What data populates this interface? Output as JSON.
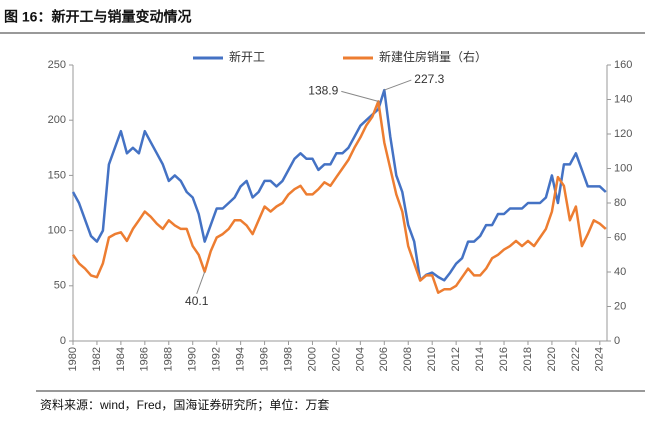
{
  "chart_data": {
    "type": "line",
    "title": "图 16：新开工与销量变动情况",
    "source": "资料来源：wind，Fred，国海证券研究所；单位：万套",
    "x": [
      1980.0,
      1980.5,
      1981.0,
      1981.5,
      1982.0,
      1982.5,
      1983.0,
      1983.5,
      1984.0,
      1984.5,
      1985.0,
      1985.5,
      1986.0,
      1986.5,
      1987.0,
      1987.5,
      1988.0,
      1988.5,
      1989.0,
      1989.5,
      1990.0,
      1990.5,
      1991.0,
      1991.5,
      1992.0,
      1992.5,
      1993.0,
      1993.5,
      1994.0,
      1994.5,
      1995.0,
      1995.5,
      1996.0,
      1996.5,
      1997.0,
      1997.5,
      1998.0,
      1998.5,
      1999.0,
      1999.5,
      2000.0,
      2000.5,
      2001.0,
      2001.5,
      2002.0,
      2002.5,
      2003.0,
      2003.5,
      2004.0,
      2004.5,
      2005.0,
      2005.5,
      2006.0,
      2006.5,
      2007.0,
      2007.5,
      2008.0,
      2008.5,
      2009.0,
      2009.5,
      2010.0,
      2010.5,
      2011.0,
      2011.5,
      2012.0,
      2012.5,
      2013.0,
      2013.5,
      2014.0,
      2014.5,
      2015.0,
      2015.5,
      2016.0,
      2016.5,
      2017.0,
      2017.5,
      2018.0,
      2018.5,
      2019.0,
      2019.5,
      2020.0,
      2020.5,
      2021.0,
      2021.5,
      2022.0,
      2022.5,
      2023.0,
      2023.5,
      2024.0,
      2024.5
    ],
    "series": [
      {
        "name": "新开工",
        "color": "#4472c4",
        "axis": "y",
        "values": [
          135,
          125,
          110,
          95,
          90,
          100,
          160,
          175,
          190,
          170,
          175,
          170,
          190,
          180,
          170,
          160,
          145,
          150,
          145,
          135,
          130,
          115,
          90,
          105,
          120,
          120,
          125,
          130,
          140,
          145,
          130,
          135,
          145,
          145,
          140,
          145,
          155,
          165,
          170,
          165,
          165,
          155,
          160,
          160,
          170,
          170,
          175,
          185,
          195,
          200,
          205,
          210,
          227.3,
          185,
          150,
          135,
          105,
          90,
          55,
          60,
          62,
          58,
          55,
          62,
          70,
          75,
          90,
          90,
          95,
          105,
          105,
          115,
          115,
          120,
          120,
          120,
          125,
          125,
          125,
          130,
          150,
          125,
          160,
          160,
          170,
          155,
          140,
          140,
          140,
          135
        ]
      },
      {
        "name": "新建住房销量（右）",
        "color": "#ed7d31",
        "axis": "y2",
        "values": [
          50,
          45,
          42,
          38,
          37,
          45,
          60,
          62,
          63,
          58,
          65,
          70,
          75,
          72,
          68,
          65,
          70,
          67,
          65,
          65,
          55,
          50,
          40.1,
          52,
          60,
          62,
          65,
          70,
          70,
          67,
          62,
          70,
          78,
          75,
          78,
          80,
          85,
          88,
          90,
          85,
          85,
          88,
          92,
          90,
          95,
          100,
          105,
          112,
          118,
          125,
          130,
          138.9,
          115,
          100,
          85,
          75,
          55,
          45,
          35,
          38,
          38,
          28,
          30,
          30,
          32,
          37,
          42,
          38,
          38,
          42,
          48,
          50,
          53,
          55,
          58,
          55,
          58,
          55,
          60,
          65,
          75,
          95,
          90,
          70,
          78,
          55,
          62,
          70,
          68,
          65
        ]
      }
    ],
    "annotations": [
      {
        "x": 2005.5,
        "y": 138.9,
        "axis": "y2"
      },
      {
        "x": 2006.0,
        "y": 227.3,
        "axis": "y"
      },
      {
        "x": 1991.0,
        "y": 40.1,
        "axis": "y2"
      }
    ],
    "xlim": [
      1980,
      2024.6
    ],
    "xticks": [
      1980,
      1982,
      1984,
      1986,
      1988,
      1990,
      1992,
      1994,
      1996,
      1998,
      2000,
      2002,
      2004,
      2006,
      2008,
      2010,
      2012,
      2014,
      2016,
      2018,
      2020,
      2022,
      2024
    ],
    "ylim": [
      0,
      250
    ],
    "yticks": [
      0,
      50,
      100,
      150,
      200,
      250
    ],
    "y2lim": [
      0,
      160
    ],
    "y2ticks": [
      0,
      20,
      40,
      60,
      80,
      100,
      120,
      140,
      160
    ]
  }
}
